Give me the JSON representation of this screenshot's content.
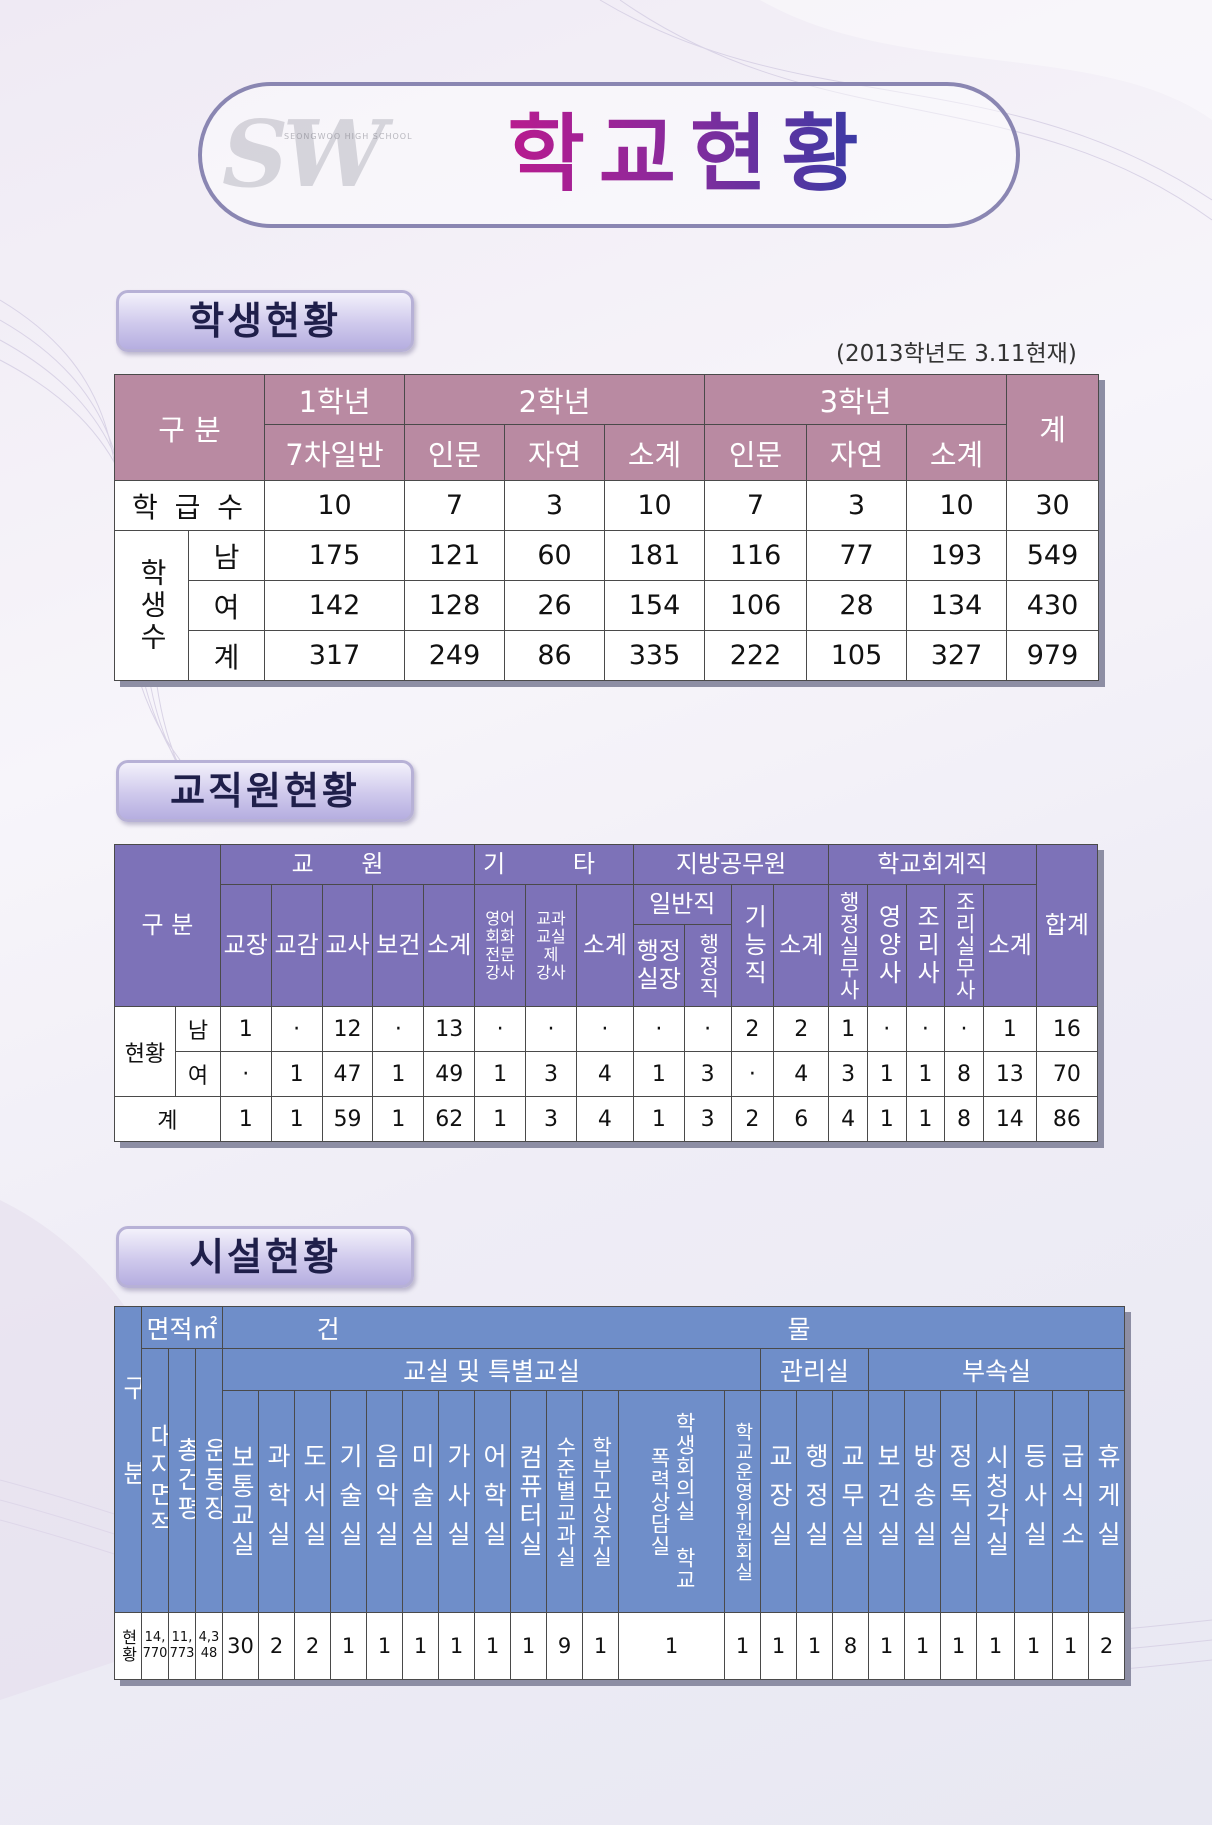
{
  "header": {
    "title": "학교현황",
    "logo": "SW",
    "logo_sub": "SEONGWOO HIGH SCHOOL"
  },
  "students": {
    "section": "학생현황",
    "note": "(2013학년도 3.11현재)",
    "corner": "구 분",
    "grade1": "1학년",
    "grade2": "2학년",
    "grade3": "3학년",
    "total": "계",
    "sub": [
      "7차일반",
      "인문",
      "자연",
      "소계",
      "인문",
      "자연",
      "소계"
    ],
    "class_label": "학 급 수",
    "count_label": "학생수",
    "rows": [
      {
        "label": "학 급 수",
        "values": [
          "10",
          "7",
          "3",
          "10",
          "7",
          "3",
          "10",
          "30"
        ]
      },
      {
        "label": "남",
        "values": [
          "175",
          "121",
          "60",
          "181",
          "116",
          "77",
          "193",
          "549"
        ]
      },
      {
        "label": "여",
        "values": [
          "142",
          "128",
          "26",
          "154",
          "106",
          "28",
          "134",
          "430"
        ]
      },
      {
        "label": "계",
        "values": [
          "317",
          "249",
          "86",
          "335",
          "222",
          "105",
          "327",
          "979"
        ]
      }
    ]
  },
  "staff": {
    "section": "교직원현황",
    "corner": "구 분",
    "groups": {
      "teacher": "교 원",
      "other": "기 타",
      "local": "지방공무원",
      "school": "학교회계직",
      "total": "합계",
      "general": "일반직"
    },
    "cols": [
      "교장",
      "교감",
      "교사",
      "보건",
      "소계",
      "영어회화전문강사",
      "교과교실제강사",
      "소계",
      "행정실장",
      "행정직",
      "기능직",
      "소계",
      "행정실무사",
      "영양사",
      "조리사",
      "조리실무사",
      "소계"
    ],
    "col_display": {
      "eng": [
        "영어",
        "회화",
        "전문",
        "강사"
      ],
      "subj": [
        "교과",
        "교실",
        "제",
        "강사"
      ],
      "admin_head": [
        "행정",
        "실장"
      ]
    },
    "status_label": "현황",
    "rows": [
      {
        "label": "남",
        "values": [
          "1",
          "·",
          "12",
          "·",
          "13",
          "·",
          "·",
          "·",
          "·",
          "·",
          "2",
          "2",
          "1",
          "·",
          "·",
          "·",
          "1",
          "16"
        ]
      },
      {
        "label": "여",
        "values": [
          "·",
          "1",
          "47",
          "1",
          "49",
          "1",
          "3",
          "4",
          "1",
          "3",
          "·",
          "4",
          "3",
          "1",
          "1",
          "8",
          "13",
          "70"
        ]
      },
      {
        "label": "계",
        "values": [
          "1",
          "1",
          "59",
          "1",
          "62",
          "1",
          "3",
          "4",
          "1",
          "3",
          "2",
          "6",
          "4",
          "1",
          "1",
          "8",
          "14",
          "86"
        ]
      }
    ]
  },
  "facility": {
    "section": "시설현황",
    "corner": "구분",
    "area": "면적㎡",
    "building": "건 물",
    "classroom": "교실 및 특별교실",
    "management": "관리실",
    "annex": "부속실",
    "cols": [
      "대지면적",
      "총건평",
      "운동장",
      "보통교실",
      "과학실",
      "도서실",
      "기술실",
      "음악실",
      "미술실",
      "가사실",
      "어학실",
      "컴퓨터실",
      "수준별교과실",
      "학부모상주실",
      "학생회의실 학교폭력상담실",
      "학교운영위원회실",
      "교장실",
      "행정실",
      "교무실",
      "보건실",
      "방송실",
      "정독실",
      "시청각실",
      "등사실",
      "급식소",
      "휴게실"
    ],
    "status_label": "현황",
    "values": [
      "14,770",
      "11,773",
      "4,348",
      "30",
      "2",
      "2",
      "1",
      "1",
      "1",
      "1",
      "1",
      "1",
      "9",
      "1",
      "1",
      "1",
      "1",
      "1",
      "8",
      "1",
      "1",
      "1",
      "1",
      "1",
      "1",
      "2"
    ]
  },
  "colors": {
    "student_header": "#b98aa2",
    "staff_header": "#7d72b8",
    "facility_header": "#6f8ec9",
    "title_gradient": [
      "#c0188c",
      "#2a3ea6"
    ]
  }
}
